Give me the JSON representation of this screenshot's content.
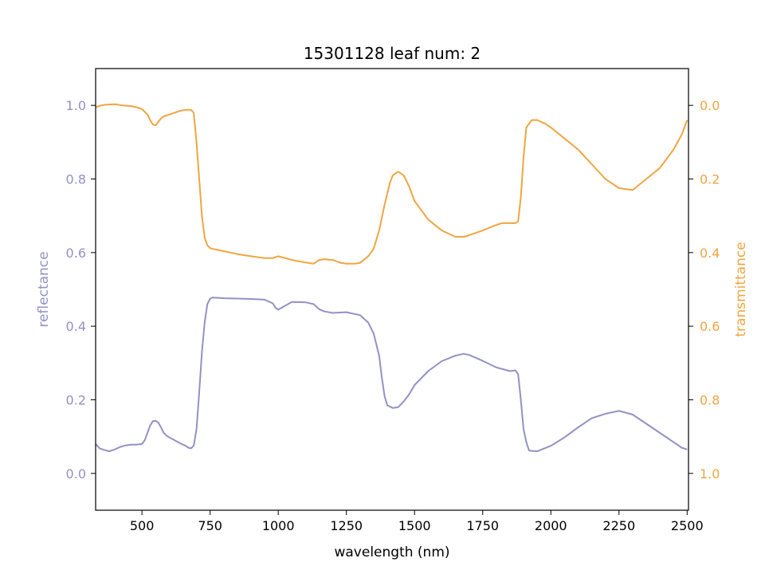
{
  "chart_data": {
    "type": "line",
    "title": "15301128 leaf num: 2",
    "xlabel": "wavelength (nm)",
    "ylabel_left": "reflectance",
    "ylabel_right": "transmittance",
    "xlim": [
      330,
      2505
    ],
    "ylim_left": [
      -0.1,
      1.1
    ],
    "ylim_right_inverted": [
      1.1,
      -0.1
    ],
    "x_ticks": [
      500,
      750,
      1000,
      1250,
      1500,
      1750,
      2000,
      2250,
      2500
    ],
    "y_left_ticks": [
      "0.0",
      "0.2",
      "0.4",
      "0.6",
      "0.8",
      "1.0"
    ],
    "y_right_ticks": [
      "0.0",
      "0.2",
      "0.4",
      "0.6",
      "0.8",
      "1.0"
    ],
    "grid": false,
    "colors": {
      "reflectance": "#9590c4",
      "transmittance": "#f0a540",
      "axes": "#000000"
    },
    "series": [
      {
        "axis": "left",
        "x": [
          330,
          345,
          360,
          380,
          400,
          420,
          440,
          460,
          480,
          500,
          510,
          520,
          530,
          540,
          550,
          560,
          570,
          580,
          590,
          600,
          620,
          640,
          660,
          670,
          680,
          690,
          700,
          710,
          720,
          730,
          740,
          750,
          760,
          780,
          800,
          850,
          900,
          950,
          980,
          990,
          1000,
          1050,
          1100,
          1130,
          1150,
          1170,
          1200,
          1250,
          1300,
          1330,
          1350,
          1370,
          1380,
          1390,
          1400,
          1420,
          1440,
          1460,
          1480,
          1500,
          1550,
          1600,
          1650,
          1680,
          1700,
          1750,
          1800,
          1850,
          1870,
          1880,
          1890,
          1900,
          1910,
          1920,
          1950,
          2000,
          2050,
          2100,
          2150,
          2200,
          2250,
          2300,
          2350,
          2400,
          2450,
          2480,
          2500
        ],
        "y": [
          0.08,
          0.068,
          0.064,
          0.06,
          0.065,
          0.072,
          0.076,
          0.078,
          0.078,
          0.08,
          0.09,
          0.11,
          0.13,
          0.142,
          0.143,
          0.138,
          0.125,
          0.11,
          0.103,
          0.098,
          0.09,
          0.082,
          0.075,
          0.07,
          0.068,
          0.075,
          0.12,
          0.22,
          0.33,
          0.41,
          0.46,
          0.475,
          0.478,
          0.477,
          0.476,
          0.475,
          0.474,
          0.472,
          0.462,
          0.45,
          0.445,
          0.466,
          0.465,
          0.46,
          0.446,
          0.44,
          0.436,
          0.438,
          0.43,
          0.41,
          0.38,
          0.32,
          0.26,
          0.21,
          0.185,
          0.178,
          0.18,
          0.195,
          0.215,
          0.24,
          0.278,
          0.305,
          0.32,
          0.325,
          0.322,
          0.306,
          0.288,
          0.278,
          0.28,
          0.27,
          0.2,
          0.12,
          0.085,
          0.062,
          0.06,
          0.075,
          0.098,
          0.125,
          0.15,
          0.162,
          0.17,
          0.16,
          0.135,
          0.11,
          0.085,
          0.07,
          0.065
        ]
      },
      {
        "axis": "right",
        "x": [
          330,
          350,
          370,
          400,
          430,
          460,
          480,
          500,
          520,
          530,
          540,
          550,
          560,
          570,
          580,
          600,
          620,
          640,
          660,
          680,
          690,
          700,
          710,
          720,
          730,
          740,
          750,
          760,
          780,
          800,
          850,
          900,
          950,
          980,
          990,
          1000,
          1050,
          1100,
          1130,
          1150,
          1170,
          1200,
          1230,
          1250,
          1280,
          1300,
          1330,
          1350,
          1370,
          1390,
          1400,
          1410,
          1420,
          1440,
          1460,
          1480,
          1500,
          1550,
          1600,
          1650,
          1680,
          1700,
          1750,
          1800,
          1820,
          1850,
          1870,
          1880,
          1890,
          1900,
          1910,
          1920,
          1930,
          1950,
          1980,
          2000,
          2050,
          2100,
          2150,
          2200,
          2250,
          2300,
          2350,
          2400,
          2450,
          2480,
          2500
        ],
        "y": [
          0.005,
          0.0,
          -0.002,
          -0.003,
          0.0,
          0.002,
          0.005,
          0.01,
          0.025,
          0.04,
          0.052,
          0.054,
          0.045,
          0.035,
          0.03,
          0.025,
          0.02,
          0.015,
          0.012,
          0.012,
          0.02,
          0.1,
          0.2,
          0.3,
          0.36,
          0.38,
          0.388,
          0.39,
          0.393,
          0.396,
          0.404,
          0.41,
          0.415,
          0.415,
          0.412,
          0.41,
          0.42,
          0.427,
          0.43,
          0.42,
          0.418,
          0.42,
          0.428,
          0.43,
          0.43,
          0.428,
          0.41,
          0.39,
          0.34,
          0.27,
          0.24,
          0.21,
          0.19,
          0.18,
          0.19,
          0.22,
          0.26,
          0.31,
          0.34,
          0.357,
          0.357,
          0.353,
          0.34,
          0.325,
          0.32,
          0.32,
          0.32,
          0.315,
          0.25,
          0.14,
          0.06,
          0.05,
          0.04,
          0.04,
          0.05,
          0.06,
          0.09,
          0.12,
          0.16,
          0.2,
          0.225,
          0.23,
          0.2,
          0.17,
          0.12,
          0.08,
          0.04
        ]
      }
    ]
  }
}
